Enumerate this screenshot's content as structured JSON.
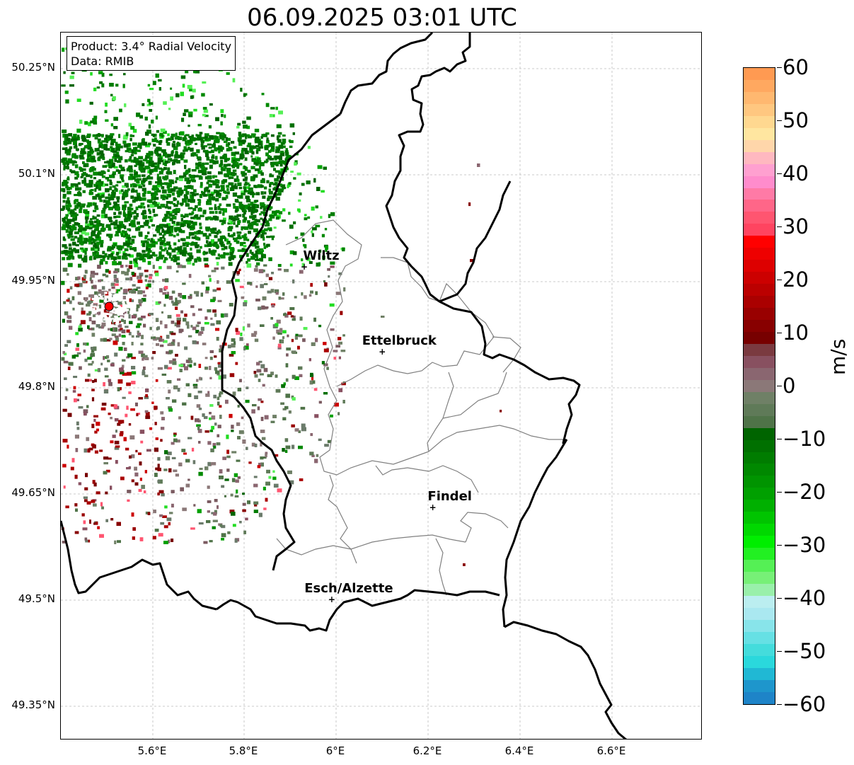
{
  "title": "06.09.2025 03:01 UTC",
  "info_box": {
    "line1": "Product: 3.4° Radial Velocity",
    "line2": "Data: RMIB"
  },
  "lat_ticks": [
    "50.25°N",
    "50.1°N",
    "49.95°N",
    "49.8°N",
    "49.65°N",
    "49.5°N",
    "49.35°N"
  ],
  "lon_ticks": [
    "5.6°E",
    "5.8°E",
    "6°E",
    "6.2°E",
    "6.4°E",
    "6.6°E"
  ],
  "cities": [
    {
      "name": "Wiltz",
      "lon": 5.93,
      "lat": 49.97
    },
    {
      "name": "Ettelbruck",
      "lon": 6.1,
      "lat": 49.85
    },
    {
      "name": "Findel",
      "lon": 6.21,
      "lat": 49.63
    },
    {
      "name": "Esch/Alzette",
      "lon": 5.99,
      "lat": 49.5
    }
  ],
  "radar_site": {
    "lon": 5.505,
    "lat": 49.914,
    "color": "#ff0000"
  },
  "colorbar": {
    "unit": "m/s",
    "min": -60,
    "max": 60,
    "tick_labels": [
      "60",
      "50",
      "40",
      "30",
      "20",
      "10",
      "0",
      "−10",
      "−20",
      "−30",
      "−40",
      "−50",
      "−60"
    ]
  }
}
